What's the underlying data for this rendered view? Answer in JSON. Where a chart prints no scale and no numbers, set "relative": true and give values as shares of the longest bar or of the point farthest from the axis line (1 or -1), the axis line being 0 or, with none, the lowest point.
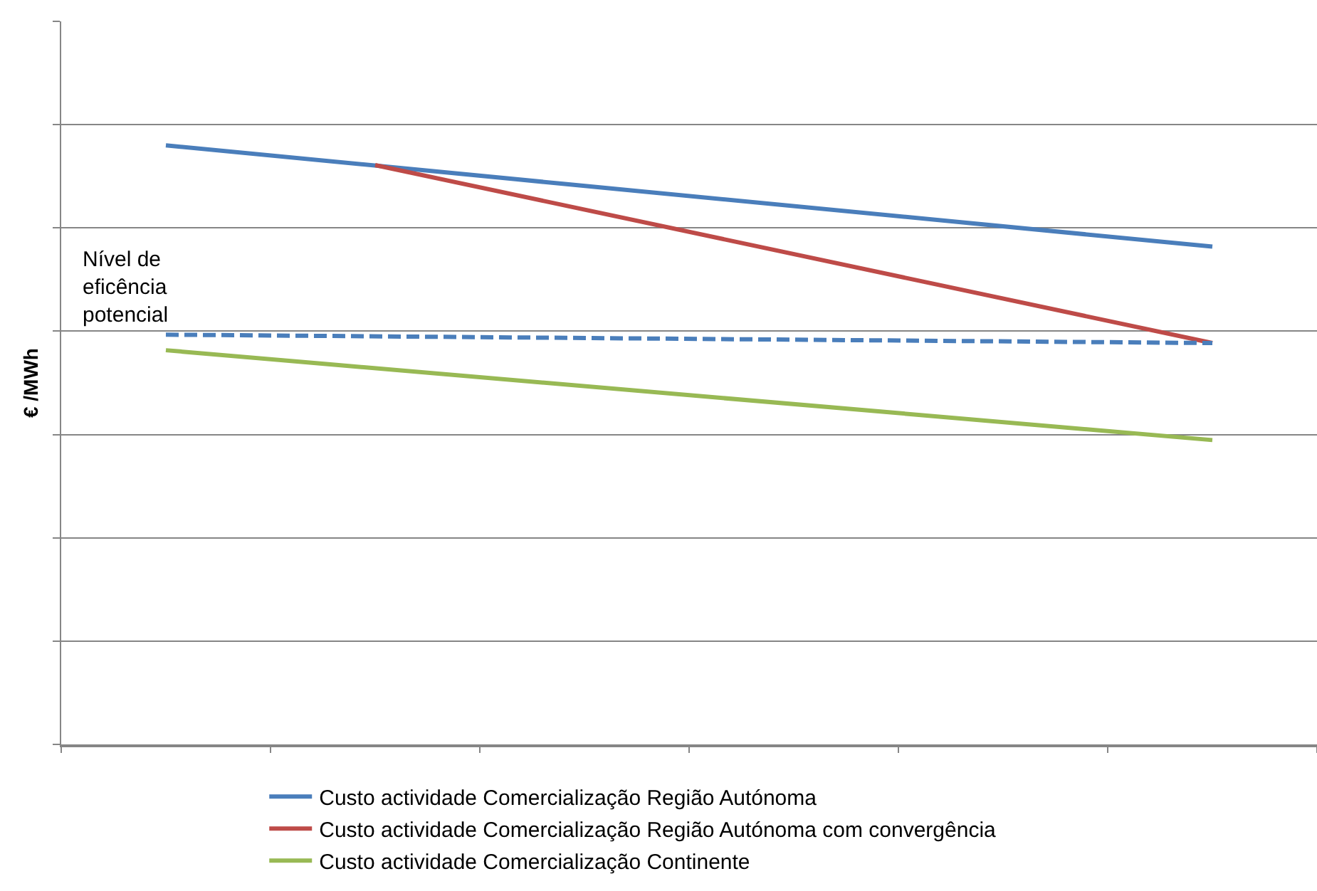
{
  "chart_data": {
    "type": "line",
    "relative": true,
    "ylabel": "€ /MWh",
    "categories": [
      null,
      null,
      null,
      null,
      null,
      null
    ],
    "series": [
      {
        "name": "Custo actividade Comercialização Região Autónoma",
        "color": "#4a7ebb",
        "values": [
          1,
          null,
          null,
          null,
          null,
          0.831
        ]
      },
      {
        "name": "Custo actividade Comercialização Região Autónoma com convergência",
        "color": "#be4b48",
        "values": [
          null,
          0.967,
          null,
          null,
          null,
          0.67
        ]
      },
      {
        "name": "Custo actividade Comercialização Continente",
        "color": "#98b954",
        "values": [
          0.658,
          null,
          null,
          null,
          null,
          0.508
        ]
      },
      {
        "color": "#4a7ebb",
        "line_style": "dashed",
        "values": [
          0.684,
          null,
          null,
          null,
          null,
          0.67
        ]
      }
    ],
    "annotations": [
      "Nível de\neficência\npotencial"
    ],
    "grid": "y",
    "legend": "bottom",
    "line_style": "solid",
    "marker": "none"
  }
}
